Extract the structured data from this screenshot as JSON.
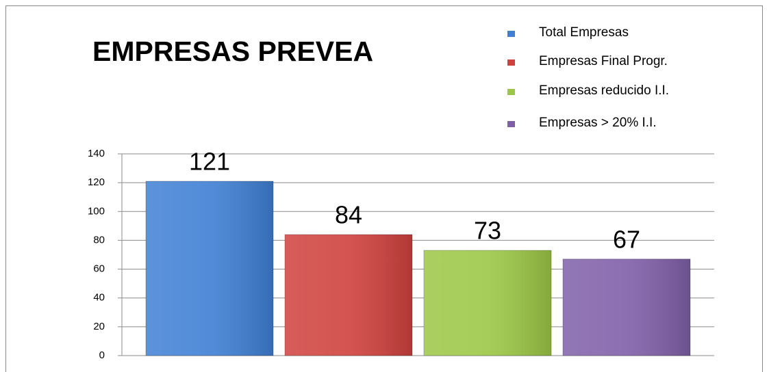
{
  "chart_data": {
    "type": "bar",
    "title": "EMPRESAS PREVEA",
    "series": [
      {
        "name": "Total Empresas",
        "color": "#3f7fd4",
        "values": [
          121
        ]
      },
      {
        "name": "Empresas Final Progr.",
        "color": "#cf413d",
        "values": [
          84
        ]
      },
      {
        "name": "Empresas reducido I.I.",
        "color": "#9cc746",
        "values": [
          73
        ]
      },
      {
        "name": "Empresas > 20% I.I.",
        "color": "#7f5fa8",
        "values": [
          67
        ]
      }
    ],
    "ylim": [
      0,
      140
    ],
    "yticks": [
      0,
      20,
      40,
      60,
      80,
      100,
      120,
      140
    ],
    "grid": true,
    "legend": "top-right",
    "data_labels": true
  }
}
